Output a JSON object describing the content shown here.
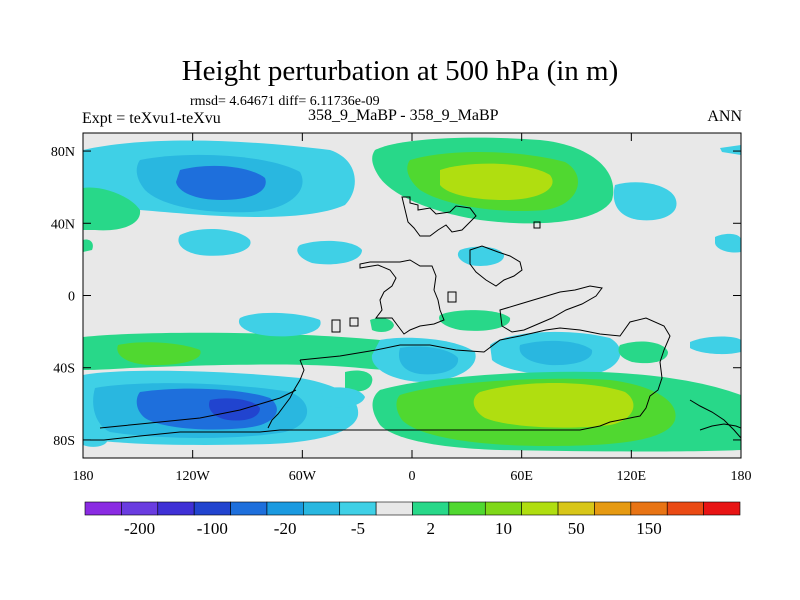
{
  "title": "Height perturbation at 500 hPa (in m)",
  "subtitle_stats": "rmsd= 4.64671 diff= 6.11736e-09",
  "left_label": "Expt = teXvu1-teXvu",
  "center_label": "358_9_MaBP - 358_9_MaBP",
  "right_label": "ANN",
  "map": {
    "lon_range": [
      -180,
      180
    ],
    "lat_range": [
      -90,
      90
    ],
    "lat_ticks": [
      {
        "value": 80,
        "label": "80N"
      },
      {
        "value": 40,
        "label": "40N"
      },
      {
        "value": 0,
        "label": "0"
      },
      {
        "value": -40,
        "label": "40S"
      },
      {
        "value": -80,
        "label": "80S"
      }
    ],
    "lon_ticks": [
      {
        "value": -180,
        "label": "180"
      },
      {
        "value": -120,
        "label": "120W"
      },
      {
        "value": -60,
        "label": "60W"
      },
      {
        "value": 0,
        "label": "0"
      },
      {
        "value": 60,
        "label": "60E"
      },
      {
        "value": 120,
        "label": "120E"
      },
      {
        "value": 180,
        "label": "180"
      }
    ],
    "background_color": "#e8e8e8",
    "anomalies": [
      {
        "name": "north-pacific-low",
        "lon": -120,
        "lat": 62,
        "level": "neg",
        "strength": 3
      },
      {
        "name": "north-atlantic-low",
        "lon": -155,
        "lat": 48,
        "level": "pos",
        "strength": 1
      },
      {
        "name": "arctic-band-low",
        "lon": -90,
        "lat": 80,
        "level": "neg",
        "strength": 2
      },
      {
        "name": "eurasia-high",
        "lon": 60,
        "lat": 62,
        "level": "pos",
        "strength": 2
      },
      {
        "name": "south-pacific-low",
        "lon": -90,
        "lat": -62,
        "level": "neg",
        "strength": 4
      },
      {
        "name": "south-indian-high",
        "lon": 65,
        "lat": -60,
        "level": "pos",
        "strength": 2
      },
      {
        "name": "south-atlantic-low",
        "lon": 20,
        "lat": -38,
        "level": "neg",
        "strength": 2
      },
      {
        "name": "south-indian-low",
        "lon": 80,
        "lat": -30,
        "level": "neg",
        "strength": 2
      },
      {
        "name": "south-pacific-high",
        "lon": -140,
        "lat": -33,
        "level": "pos",
        "strength": 2
      }
    ]
  },
  "colorbar": {
    "colors": [
      "#8a2be2",
      "#6a3ce0",
      "#3f30d6",
      "#2144cf",
      "#1e6fdc",
      "#1b9ae0",
      "#29b7e0",
      "#3fd0e6",
      "#e8e8e8",
      "#28d889",
      "#50d830",
      "#7fd818",
      "#b0de10",
      "#d8c618",
      "#e69a12",
      "#e87414",
      "#ea4a14",
      "#e81414"
    ],
    "labels": [
      "-200",
      "-100",
      "-20",
      "-5",
      "2",
      "10",
      "50",
      "150"
    ]
  }
}
